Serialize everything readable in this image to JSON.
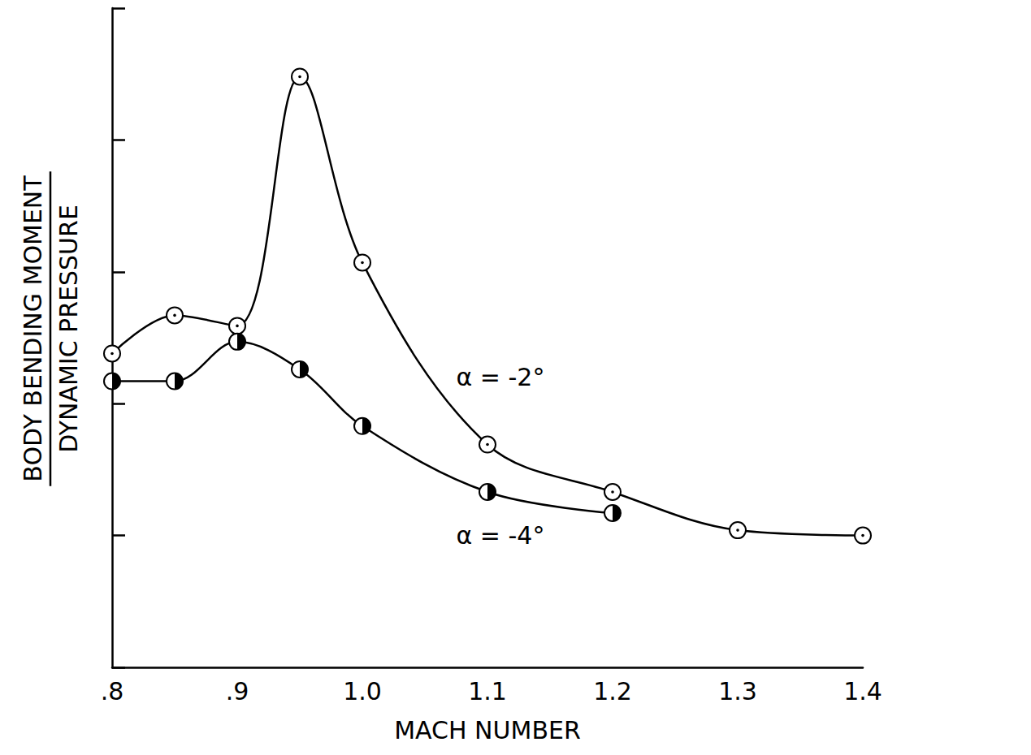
{
  "chart_data": {
    "type": "line",
    "xlabel": "MACH NUMBER",
    "ylabel": [
      "BODY BENDING MOMENT",
      "DYNAMIC PRESSURE"
    ],
    "xlim": [
      0.8,
      1.4
    ],
    "xticks": [
      {
        "value": 0.8,
        "label": ".8"
      },
      {
        "value": 0.9,
        "label": ".9"
      },
      {
        "value": 1.0,
        "label": "1.0"
      },
      1.1,
      1.2,
      1.3,
      1.4
    ],
    "ylim": [
      0,
      5
    ],
    "yticks": [
      0,
      1,
      2,
      3,
      4,
      5
    ],
    "tick_labels": "x",
    "grid": false,
    "series": [
      {
        "name": "α = -2°",
        "color": "#000000",
        "marker": "dotted_circle",
        "line_style": "solid",
        "x": [
          0.8,
          0.85,
          0.9,
          0.95,
          1.0,
          1.1,
          1.2,
          1.3,
          1.4
        ],
        "values": [
          2.38,
          2.67,
          2.59,
          4.48,
          3.07,
          1.69,
          1.33,
          1.04,
          1.0
        ]
      },
      {
        "name": "α = -4°",
        "color": "#000000",
        "marker": "half_filled_circle",
        "line_style": "solid",
        "x": [
          0.8,
          0.85,
          0.9,
          0.95,
          1.0,
          1.1,
          1.2
        ],
        "values": [
          2.17,
          2.17,
          2.47,
          2.26,
          1.83,
          1.33,
          1.17
        ]
      }
    ]
  }
}
